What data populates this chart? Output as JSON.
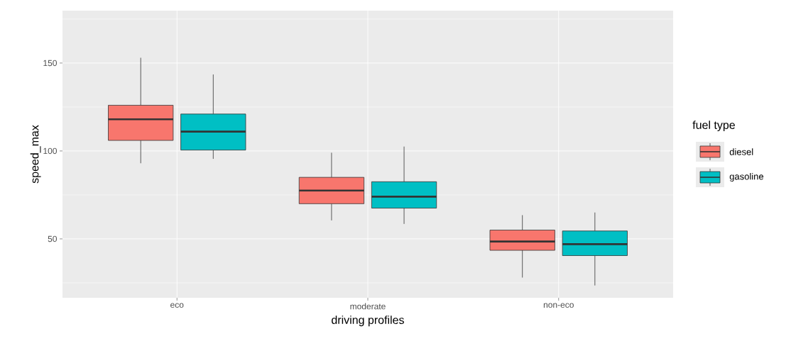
{
  "chart_data": {
    "type": "box",
    "xlabel": "driving profiles",
    "ylabel": "speed_max",
    "legend_title": "fuel type",
    "categories": [
      "eco",
      "moderate",
      "non-eco"
    ],
    "series": [
      {
        "name": "diesel",
        "color": "#f8766d",
        "boxes": [
          {
            "low": 93,
            "q1": 106,
            "median": 118,
            "q3": 126,
            "high": 153
          },
          {
            "low": 60.5,
            "q1": 70,
            "median": 77.5,
            "q3": 85,
            "high": 99
          },
          {
            "low": 28,
            "q1": 43.5,
            "median": 48.5,
            "q3": 55,
            "high": 63.5
          }
        ]
      },
      {
        "name": "gasoline",
        "color": "#00bfc4",
        "boxes": [
          {
            "low": 95.5,
            "q1": 100.5,
            "median": 111,
            "q3": 121,
            "high": 143.5
          },
          {
            "low": 58.5,
            "q1": 67.5,
            "median": 74,
            "q3": 82.5,
            "high": 102.5
          },
          {
            "low": 23.5,
            "q1": 40.5,
            "median": 47,
            "q3": 54.5,
            "high": 65
          }
        ]
      }
    ],
    "ylim": [
      16.5,
      179.8
    ],
    "yticks": [
      {
        "value": 25,
        "label": null
      },
      50,
      {
        "value": 75,
        "label": null
      },
      100,
      {
        "value": 125,
        "label": null
      },
      150,
      {
        "value": 175,
        "label": null
      }
    ],
    "grid": true,
    "legend": "right"
  }
}
